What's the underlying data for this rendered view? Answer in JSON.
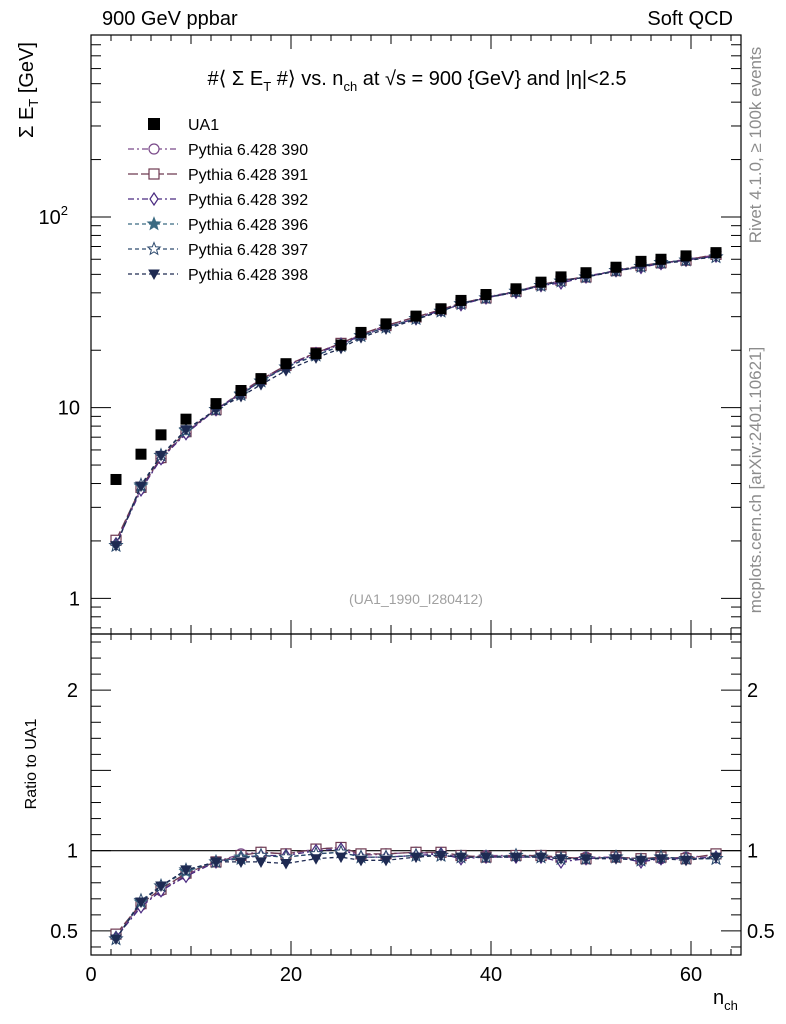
{
  "header": {
    "left": "900 GeV ppbar",
    "right": "Soft QCD"
  },
  "side_labels": {
    "rivet": "Rivet 4.1.0, ≥ 100k events",
    "mcplots": "mcplots.cern.ch [arXiv:2401.10621]"
  },
  "chart_data": {
    "type": "scatter",
    "title": "#⟨ Σ E_T #⟩ vs. n_ch at √s = 900 {GeV} and |η|<2.5",
    "title_parts": {
      "a": "#⟨ Σ E",
      "a_sub": "T",
      "b": " #⟩ vs. n",
      "b_sub": "ch",
      "c": " at √s = 900 {GeV} and |η|<2.5"
    },
    "watermark": "(UA1_1990_I280412)",
    "ylabel_main": {
      "text": "Σ E",
      "sub": "T",
      "unit": " [GeV]"
    },
    "ylabel_ratio": "Ratio to UA1",
    "xlabel": {
      "text": "n",
      "sub": "ch"
    },
    "xlim": [
      0,
      65
    ],
    "ylim_main": [
      0.65,
      900
    ],
    "ylim_ratio": [
      0.35,
      2.35
    ],
    "yscale_main": "log",
    "x_ticks": [
      0,
      20,
      40,
      60
    ],
    "y_ticks_main": [
      {
        "value": 1,
        "label": "1"
      },
      {
        "value": 10,
        "label": "10"
      },
      {
        "value": 100,
        "label": "10",
        "sup": "2"
      }
    ],
    "y_ticks_ratio": [
      {
        "value": 0.5,
        "label": "0.5"
      },
      {
        "value": 1,
        "label": "1"
      },
      {
        "value": 2,
        "label": "2"
      }
    ],
    "x": [
      2.5,
      5,
      7,
      9.5,
      12.5,
      15,
      17,
      19.5,
      22.5,
      25,
      27,
      29.5,
      32.5,
      35,
      37,
      39.5,
      42.5,
      45,
      47,
      49.5,
      52.5,
      55,
      57,
      59.5,
      62.5
    ],
    "data": {
      "name": "UA1",
      "values": [
        4.2,
        5.7,
        7.2,
        8.7,
        10.5,
        12.3,
        14.2,
        17.0,
        19.2,
        21.3,
        24.8,
        27.5,
        30.2,
        33.0,
        36.5,
        39.2,
        42.0,
        45.5,
        48.5,
        51.0,
        54.5,
        58.5,
        60.0,
        62.5,
        65.0
      ]
    },
    "series": [
      {
        "name": "Pythia 6.428 390",
        "color": "#7a4a8a",
        "marker": "circle-open",
        "dash": "6,3,2,3",
        "ratio": [
          0.47,
          0.66,
          0.75,
          0.85,
          0.93,
          0.98,
          0.99,
          0.98,
          1.01,
          1.02,
          0.97,
          0.98,
          0.99,
          0.98,
          0.96,
          0.97,
          0.97,
          0.97,
          0.95,
          0.96,
          0.96,
          0.95,
          0.95,
          0.96,
          0.97
        ]
      },
      {
        "name": "Pythia 6.428 391",
        "color": "#6e3a52",
        "marker": "square-open",
        "dash": "10,3",
        "ratio": [
          0.48,
          0.67,
          0.76,
          0.86,
          0.93,
          0.97,
          0.99,
          0.98,
          1.01,
          1.02,
          0.98,
          0.98,
          0.99,
          0.99,
          0.97,
          0.96,
          0.97,
          0.97,
          0.96,
          0.95,
          0.96,
          0.95,
          0.96,
          0.95,
          0.98
        ]
      },
      {
        "name": "Pythia 6.428 392",
        "color": "#4a2a80",
        "marker": "diamond-open",
        "dash": "6,3,2,3",
        "ratio": [
          0.46,
          0.65,
          0.75,
          0.84,
          0.93,
          0.96,
          0.97,
          0.97,
          1.0,
          1.01,
          0.96,
          0.96,
          0.97,
          0.98,
          0.95,
          0.96,
          0.96,
          0.96,
          0.93,
          0.95,
          0.96,
          0.93,
          0.95,
          0.95,
          0.96
        ]
      },
      {
        "name": "Pythia 6.428 396",
        "color": "#3a6a82",
        "marker": "star-filled",
        "dash": "4,3",
        "ratio": [
          0.45,
          0.68,
          0.78,
          0.87,
          0.93,
          0.96,
          0.97,
          0.96,
          0.98,
          0.99,
          0.96,
          0.96,
          0.97,
          0.97,
          0.96,
          0.96,
          0.97,
          0.96,
          0.95,
          0.95,
          0.96,
          0.94,
          0.96,
          0.95,
          0.95
        ]
      },
      {
        "name": "Pythia 6.428 397",
        "color": "#2e4a6e",
        "marker": "star-open",
        "dash": "4,3",
        "ratio": [
          0.45,
          0.69,
          0.78,
          0.88,
          0.93,
          0.95,
          0.97,
          0.96,
          0.98,
          0.99,
          0.96,
          0.96,
          0.97,
          0.97,
          0.96,
          0.96,
          0.97,
          0.96,
          0.95,
          0.95,
          0.96,
          0.94,
          0.96,
          0.95,
          0.95
        ]
      },
      {
        "name": "Pythia 6.428 398",
        "color": "#1e2a52",
        "marker": "triangle-down-filled",
        "dash": "4,3",
        "ratio": [
          0.45,
          0.68,
          0.78,
          0.88,
          0.93,
          0.93,
          0.93,
          0.92,
          0.95,
          0.96,
          0.94,
          0.94,
          0.96,
          0.97,
          0.96,
          0.96,
          0.96,
          0.96,
          0.95,
          0.95,
          0.95,
          0.94,
          0.95,
          0.94,
          0.96
        ]
      }
    ],
    "legend_position": "top-left"
  }
}
